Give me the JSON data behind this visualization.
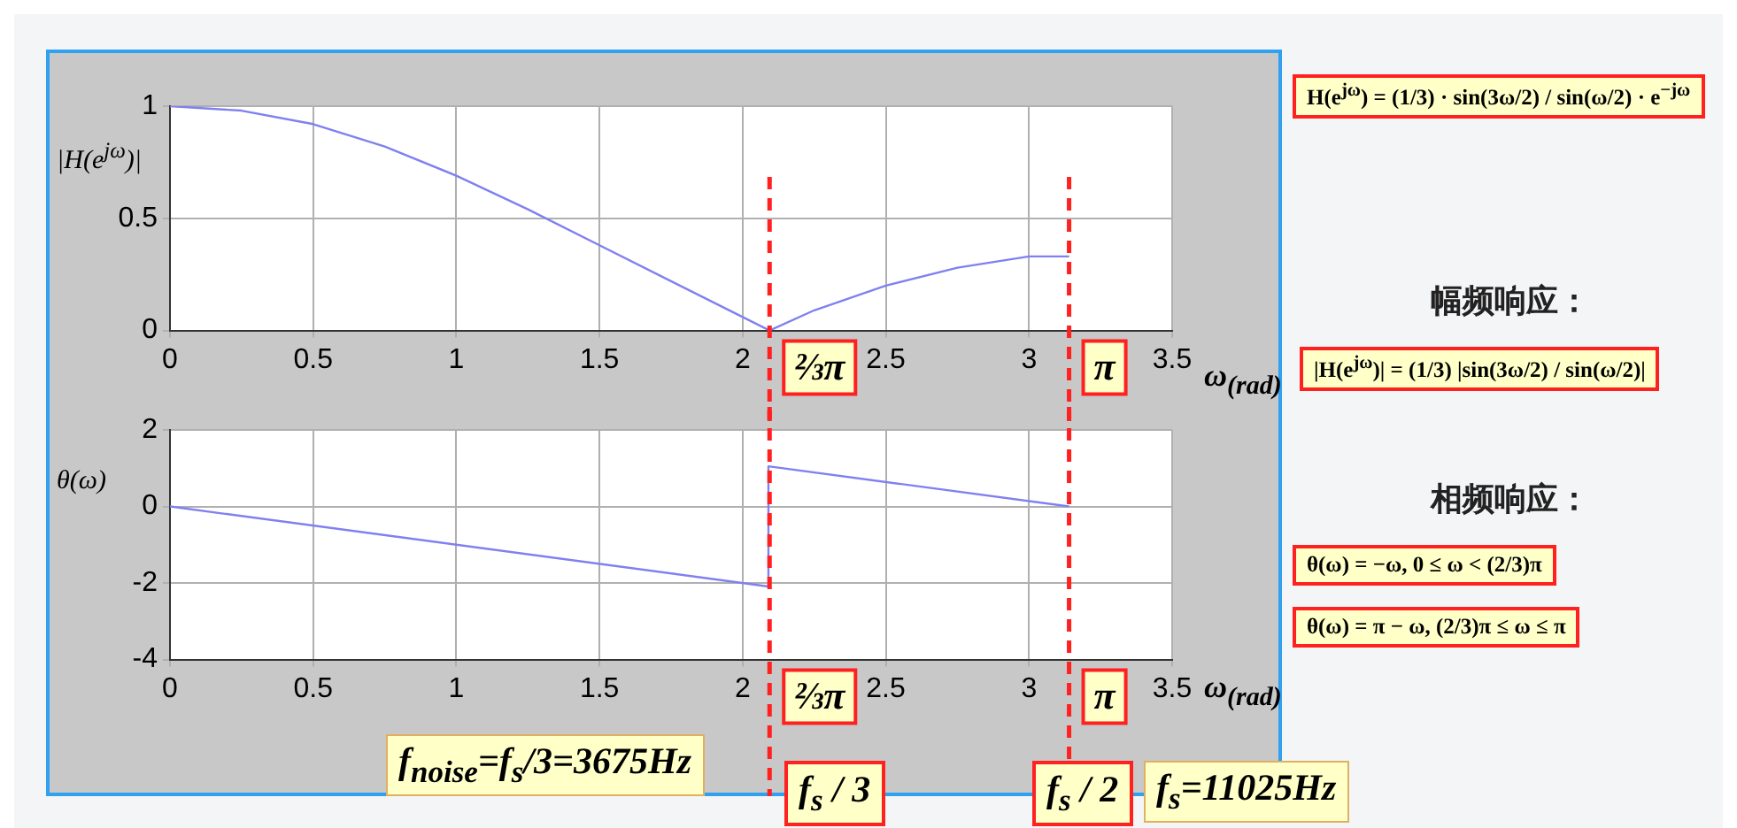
{
  "chart_data": [
    {
      "type": "line",
      "ylabel": "|H(e$^{jω}$)|",
      "xlabel": "ω$_{(rad)}$",
      "xlim": [
        0,
        3.5
      ],
      "xticks": [
        0,
        0.5,
        1,
        1.5,
        2,
        2.5,
        3,
        3.5
      ],
      "ylim": [
        0,
        1
      ],
      "yticks": [
        0,
        0.5,
        1
      ],
      "grid": true,
      "legend": false,
      "marker": "none",
      "series": [
        {
          "color": "#8080f0",
          "x": [
            0,
            0.25,
            0.5,
            0.75,
            1,
            1.25,
            1.5,
            1.75,
            2,
            2.094,
            2.25,
            2.5,
            2.75,
            3,
            3.14
          ],
          "values": [
            1,
            0.98,
            0.92,
            0.82,
            0.69,
            0.54,
            0.38,
            0.22,
            0.06,
            0,
            0.09,
            0.2,
            0.28,
            0.33,
            0.33
          ]
        }
      ],
      "ref_lines": [
        {
          "axis": "x",
          "value": 2.094,
          "label": "⅔π",
          "color": "#ff2020",
          "line_style": "dashed"
        },
        {
          "axis": "x",
          "value": 3.14,
          "label": "π",
          "color": "#ff2020",
          "line_style": "dashed"
        }
      ]
    },
    {
      "type": "line",
      "ylabel": "θ(ω)",
      "xlabel": "ω$_{(rad)}$",
      "xlim": [
        0,
        3.5
      ],
      "xticks": [
        0,
        0.5,
        1,
        1.5,
        2,
        2.5,
        3,
        3.5
      ],
      "ylim": [
        -4,
        2
      ],
      "yticks": [
        -4,
        -2,
        0,
        2
      ],
      "grid": true,
      "legend": false,
      "marker": "none",
      "series": [
        {
          "color": "#8080f0",
          "x": [
            0,
            2.09,
            2.09,
            3.14
          ],
          "values": [
            0,
            -2.09,
            1.05,
            0
          ]
        }
      ],
      "ref_lines": [
        {
          "axis": "x",
          "value": 2.094,
          "label": "⅔π",
          "color": "#ff2020",
          "line_style": "dashed"
        },
        {
          "axis": "x",
          "value": 3.14,
          "label": "π",
          "color": "#ff2020",
          "line_style": "dashed"
        }
      ],
      "annotations": [
        "f$_{noise}$=f$_{s}$/3=3675Hz",
        "f$_{s}$ / 3",
        "f$_{s}$ / 2",
        "f$_{s}$=11025Hz"
      ]
    },
    {
      "type": "other",
      "annotations": [
        "H(e$^{jω}$) = (1/3) · sin(3ω/2) / sin(ω/2) · e$^{−jω}$",
        "幅频响应：",
        "|H(e$^{jω}$)| = (1/3) |sin(3ω/2) / sin(ω/2)|",
        "相频响应：",
        "θ(ω) = −ω,  0 ≤ ω < (2/3)π",
        "θ(ω) = π − ω,  (2/3)π ≤ ω ≤ π"
      ]
    }
  ]
}
